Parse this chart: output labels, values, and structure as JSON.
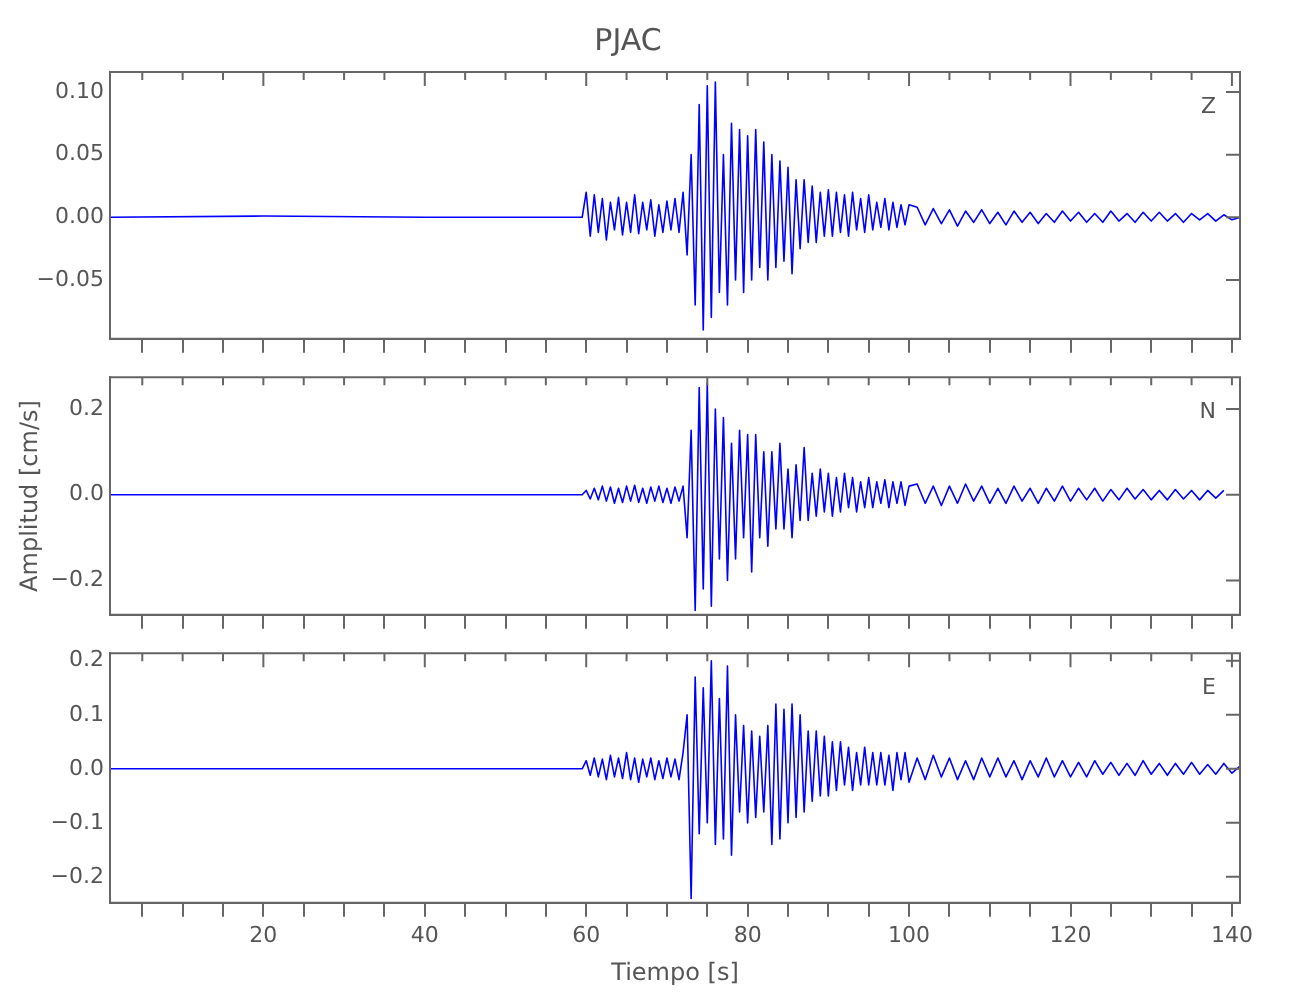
{
  "chart_data": [
    {
      "type": "line",
      "title": "PJAC",
      "annotations": [
        "Z"
      ],
      "tick_labels": "y",
      "grid": false,
      "legend": false,
      "marker": "none",
      "line_style": "solid",
      "xlim": [
        1,
        141
      ],
      "xticks": [
        {
          "value": 5,
          "label": null
        },
        {
          "value": 10,
          "label": null
        },
        {
          "value": 15,
          "label": null
        },
        20,
        {
          "value": 25,
          "label": null
        },
        {
          "value": 30,
          "label": null
        },
        {
          "value": 35,
          "label": null
        },
        40,
        {
          "value": 45,
          "label": null
        },
        {
          "value": 50,
          "label": null
        },
        {
          "value": 55,
          "label": null
        },
        60,
        {
          "value": 65,
          "label": null
        },
        {
          "value": 70,
          "label": null
        },
        {
          "value": 75,
          "label": null
        },
        80,
        {
          "value": 85,
          "label": null
        },
        {
          "value": 90,
          "label": null
        },
        {
          "value": 95,
          "label": null
        },
        100,
        {
          "value": 105,
          "label": null
        },
        {
          "value": 110,
          "label": null
        },
        {
          "value": 115,
          "label": null
        },
        120,
        {
          "value": 125,
          "label": null
        },
        {
          "value": 130,
          "label": null
        },
        {
          "value": 135,
          "label": null
        },
        140
      ],
      "ylim": [
        -0.097,
        0.116
      ],
      "yticks": [
        {
          "value": -0.05,
          "label": "−0.05"
        },
        {
          "value": 0,
          "label": "0.00"
        },
        {
          "value": 0.05,
          "label": "0.05"
        },
        {
          "value": 0.1,
          "label": "0.10"
        }
      ],
      "x": [
        1,
        20,
        40,
        59.5,
        60,
        60.5,
        61,
        61.5,
        62,
        62.5,
        63,
        63.5,
        64,
        64.5,
        65,
        65.5,
        66,
        66.5,
        67,
        67.5,
        68,
        68.5,
        69,
        69.5,
        70,
        70.5,
        71,
        71.5,
        72,
        72.5,
        73,
        73.5,
        74,
        74.5,
        75,
        75.5,
        76,
        76.5,
        77,
        77.5,
        78,
        78.5,
        79,
        79.5,
        80,
        80.5,
        81,
        81.5,
        82,
        82.5,
        83,
        83.5,
        84,
        84.5,
        85,
        85.5,
        86,
        86.5,
        87,
        87.5,
        88,
        88.5,
        89,
        89.5,
        90,
        90.5,
        91,
        91.5,
        92,
        92.5,
        93,
        93.5,
        94,
        94.5,
        95,
        95.5,
        96,
        96.5,
        97,
        97.5,
        98,
        98.5,
        99,
        99.5,
        100,
        101,
        102,
        103,
        104,
        105,
        106,
        107,
        108,
        109,
        110,
        111,
        112,
        113,
        114,
        115,
        116,
        117,
        118,
        119,
        120,
        121,
        122,
        123,
        124,
        125,
        126,
        127,
        128,
        129,
        130,
        131,
        132,
        133,
        134,
        135,
        136,
        137,
        138,
        139,
        140,
        141
      ],
      "series": [
        {
          "color": "#0000ff",
          "values": [
            0,
            0.001,
            0,
            0,
            0.02,
            -0.015,
            0.018,
            -0.012,
            0.015,
            -0.018,
            0.012,
            -0.01,
            0.016,
            -0.014,
            0.012,
            -0.012,
            0.018,
            -0.013,
            0.012,
            -0.01,
            0.014,
            -0.015,
            0.01,
            -0.012,
            0.013,
            -0.01,
            0.015,
            -0.012,
            0.02,
            -0.03,
            0.05,
            -0.07,
            0.09,
            -0.09,
            0.105,
            -0.08,
            0.108,
            -0.06,
            0.05,
            -0.07,
            0.075,
            -0.05,
            0.07,
            -0.06,
            0.065,
            -0.05,
            0.07,
            -0.04,
            0.06,
            -0.05,
            0.05,
            -0.04,
            0.045,
            -0.035,
            0.04,
            -0.045,
            0.03,
            -0.025,
            0.03,
            -0.02,
            0.025,
            -0.02,
            0.02,
            -0.015,
            0.022,
            -0.015,
            0.02,
            -0.012,
            0.018,
            -0.015,
            0.02,
            -0.01,
            0.015,
            -0.012,
            0.018,
            -0.01,
            0.012,
            -0.008,
            0.015,
            -0.01,
            0.012,
            -0.008,
            0.01,
            -0.006,
            0.01,
            0.008,
            -0.006,
            0.007,
            -0.005,
            0.006,
            -0.007,
            0.005,
            -0.004,
            0.006,
            -0.005,
            0.004,
            -0.006,
            0.005,
            -0.004,
            0.004,
            -0.005,
            0.003,
            -0.004,
            0.005,
            -0.003,
            0.004,
            -0.004,
            0.003,
            -0.004,
            0.005,
            -0.003,
            0.003,
            -0.004,
            0.004,
            -0.003,
            0.004,
            -0.003,
            0.003,
            -0.004,
            0.003,
            -0.002,
            0.003,
            -0.003,
            0.002,
            -0.002,
            0
          ]
        }
      ]
    },
    {
      "type": "line",
      "ylabel": "Amplitud [cm/s]",
      "annotations": [
        "N"
      ],
      "tick_labels": "y",
      "grid": false,
      "legend": false,
      "marker": "none",
      "line_style": "solid",
      "xlim": [
        1,
        141
      ],
      "xticks": [
        {
          "value": 5,
          "label": null
        },
        {
          "value": 10,
          "label": null
        },
        {
          "value": 15,
          "label": null
        },
        {
          "value": 20,
          "label": null
        },
        {
          "value": 25,
          "label": null
        },
        {
          "value": 30,
          "label": null
        },
        {
          "value": 35,
          "label": null
        },
        {
          "value": 40,
          "label": null
        },
        {
          "value": 45,
          "label": null
        },
        {
          "value": 50,
          "label": null
        },
        {
          "value": 55,
          "label": null
        },
        {
          "value": 60,
          "label": null
        },
        {
          "value": 65,
          "label": null
        },
        {
          "value": 70,
          "label": null
        },
        {
          "value": 75,
          "label": null
        },
        {
          "value": 80,
          "label": null
        },
        {
          "value": 85,
          "label": null
        },
        {
          "value": 90,
          "label": null
        },
        {
          "value": 95,
          "label": null
        },
        {
          "value": 100,
          "label": null
        },
        {
          "value": 105,
          "label": null
        },
        {
          "value": 110,
          "label": null
        },
        {
          "value": 115,
          "label": null
        },
        {
          "value": 120,
          "label": null
        },
        {
          "value": 125,
          "label": null
        },
        {
          "value": 130,
          "label": null
        },
        {
          "value": 135,
          "label": null
        },
        {
          "value": 140,
          "label": null
        }
      ],
      "ylim": [
        -0.28,
        0.274
      ],
      "yticks": [
        {
          "value": -0.2,
          "label": "−0.2"
        },
        {
          "value": 0,
          "label": "0.0"
        },
        {
          "value": 0.2,
          "label": "0.2"
        }
      ],
      "x": [
        1,
        20,
        40,
        59.5,
        60,
        60.5,
        61,
        61.5,
        62,
        62.5,
        63,
        63.5,
        64,
        64.5,
        65,
        65.5,
        66,
        66.5,
        67,
        67.5,
        68,
        68.5,
        69,
        69.5,
        70,
        70.5,
        71,
        71.5,
        72,
        72.5,
        73,
        73.5,
        74,
        74.5,
        75,
        75.5,
        76,
        76.5,
        77,
        77.5,
        78,
        78.5,
        79,
        79.5,
        80,
        80.5,
        81,
        81.5,
        82,
        82.5,
        83,
        83.5,
        84,
        84.5,
        85,
        85.5,
        86,
        86.5,
        87,
        87.5,
        88,
        88.5,
        89,
        89.5,
        90,
        90.5,
        91,
        91.5,
        92,
        92.5,
        93,
        93.5,
        94,
        94.5,
        95,
        95.5,
        96,
        96.5,
        97,
        97.5,
        98,
        98.5,
        99,
        99.5,
        100,
        101,
        102,
        103,
        104,
        105,
        106,
        107,
        108,
        109,
        110,
        111,
        112,
        113,
        114,
        115,
        116,
        117,
        118,
        119,
        120,
        121,
        122,
        123,
        124,
        125,
        126,
        127,
        128,
        129,
        130,
        131,
        132,
        133,
        134,
        135,
        136,
        137,
        138,
        139
      ],
      "series": [
        {
          "color": "#0000ff",
          "values": [
            0,
            0,
            0,
            0,
            0.01,
            -0.01,
            0.015,
            -0.012,
            0.02,
            -0.015,
            0.018,
            -0.02,
            0.015,
            -0.018,
            0.02,
            -0.015,
            0.022,
            -0.018,
            0.015,
            -0.02,
            0.018,
            -0.015,
            0.02,
            -0.018,
            0.015,
            -0.02,
            0.018,
            -0.015,
            0.02,
            -0.1,
            0.15,
            -0.27,
            0.25,
            -0.22,
            0.26,
            -0.26,
            0.2,
            -0.15,
            0.18,
            -0.2,
            0.12,
            -0.15,
            0.15,
            -0.1,
            0.14,
            -0.18,
            0.14,
            -0.1,
            0.1,
            -0.12,
            0.1,
            -0.08,
            0.12,
            -0.08,
            0.06,
            -0.1,
            0.07,
            -0.06,
            0.11,
            -0.06,
            0.05,
            -0.05,
            0.06,
            -0.04,
            0.05,
            -0.05,
            0.04,
            -0.04,
            0.05,
            -0.03,
            0.04,
            -0.04,
            0.03,
            -0.03,
            0.04,
            -0.03,
            0.03,
            -0.02,
            0.035,
            -0.03,
            0.03,
            -0.02,
            0.03,
            -0.025,
            0.02,
            0.025,
            -0.02,
            0.02,
            -0.025,
            0.02,
            -0.02,
            0.025,
            -0.015,
            0.02,
            -0.02,
            0.015,
            -0.02,
            0.02,
            -0.015,
            0.015,
            -0.02,
            0.015,
            -0.015,
            0.02,
            -0.015,
            0.015,
            -0.012,
            0.015,
            -0.015,
            0.012,
            -0.012,
            0.015,
            -0.01,
            0.012,
            -0.012,
            0.01,
            -0.012,
            0.012,
            -0.01,
            0.01,
            -0.012,
            0.01,
            -0.008,
            0.01
          ]
        }
      ]
    },
    {
      "type": "line",
      "xlabel": "Tiempo [s]",
      "annotations": [
        "E"
      ],
      "grid": false,
      "legend": false,
      "marker": "none",
      "line_style": "solid",
      "xlim": [
        1,
        141
      ],
      "xticks": [
        {
          "value": 5,
          "label": null
        },
        {
          "value": 10,
          "label": null
        },
        {
          "value": 15,
          "label": null
        },
        20,
        {
          "value": 25,
          "label": null
        },
        {
          "value": 30,
          "label": null
        },
        {
          "value": 35,
          "label": null
        },
        40,
        {
          "value": 45,
          "label": null
        },
        {
          "value": 50,
          "label": null
        },
        {
          "value": 55,
          "label": null
        },
        60,
        {
          "value": 65,
          "label": null
        },
        {
          "value": 70,
          "label": null
        },
        {
          "value": 75,
          "label": null
        },
        80,
        {
          "value": 85,
          "label": null
        },
        {
          "value": 90,
          "label": null
        },
        {
          "value": 95,
          "label": null
        },
        100,
        {
          "value": 105,
          "label": null
        },
        {
          "value": 110,
          "label": null
        },
        {
          "value": 115,
          "label": null
        },
        120,
        {
          "value": 125,
          "label": null
        },
        {
          "value": 130,
          "label": null
        },
        {
          "value": 135,
          "label": null
        },
        140
      ],
      "ylim": [
        -0.248,
        0.214
      ],
      "yticks": [
        {
          "value": -0.2,
          "label": "−0.2"
        },
        {
          "value": -0.1,
          "label": "−0.1"
        },
        {
          "value": 0,
          "label": "0.0"
        },
        {
          "value": 0.1,
          "label": "0.1"
        },
        {
          "value": 0.2,
          "label": "0.2"
        }
      ],
      "x": [
        1,
        20,
        40,
        59.5,
        60,
        60.5,
        61,
        61.5,
        62,
        62.5,
        63,
        63.5,
        64,
        64.5,
        65,
        65.5,
        66,
        66.5,
        67,
        67.5,
        68,
        68.5,
        69,
        69.5,
        70,
        70.5,
        71,
        71.5,
        72,
        72.5,
        73,
        73.5,
        74,
        74.5,
        75,
        75.5,
        76,
        76.5,
        77,
        77.5,
        78,
        78.5,
        79,
        79.5,
        80,
        80.5,
        81,
        81.5,
        82,
        82.5,
        83,
        83.5,
        84,
        84.5,
        85,
        85.5,
        86,
        86.5,
        87,
        87.5,
        88,
        88.5,
        89,
        89.5,
        90,
        90.5,
        91,
        91.5,
        92,
        92.5,
        93,
        93.5,
        94,
        94.5,
        95,
        95.5,
        96,
        96.5,
        97,
        97.5,
        98,
        98.5,
        99,
        99.5,
        100,
        101,
        102,
        103,
        104,
        105,
        106,
        107,
        108,
        109,
        110,
        111,
        112,
        113,
        114,
        115,
        116,
        117,
        118,
        119,
        120,
        121,
        122,
        123,
        124,
        125,
        126,
        127,
        128,
        129,
        130,
        131,
        132,
        133,
        134,
        135,
        136,
        137,
        138,
        139,
        140,
        141
      ],
      "series": [
        {
          "color": "#0000ff",
          "values": [
            0,
            0,
            0,
            0,
            0.015,
            -0.012,
            0.02,
            -0.015,
            0.018,
            -0.02,
            0.025,
            -0.015,
            0.02,
            -0.018,
            0.03,
            -0.02,
            0.02,
            -0.025,
            0.018,
            -0.015,
            0.02,
            -0.02,
            0.015,
            -0.018,
            0.02,
            -0.015,
            0.018,
            -0.02,
            0.03,
            0.1,
            -0.24,
            0.17,
            -0.12,
            0.15,
            -0.1,
            0.2,
            -0.14,
            0.13,
            -0.13,
            0.19,
            -0.16,
            0.1,
            -0.08,
            0.08,
            -0.1,
            0.07,
            -0.09,
            0.06,
            -0.08,
            0.08,
            -0.14,
            0.12,
            -0.13,
            0.11,
            -0.1,
            0.12,
            -0.09,
            0.1,
            -0.08,
            0.07,
            -0.06,
            0.07,
            -0.05,
            0.06,
            -0.05,
            0.05,
            -0.04,
            0.05,
            -0.03,
            0.04,
            -0.04,
            0.03,
            -0.03,
            0.04,
            -0.03,
            0.03,
            -0.03,
            0.03,
            -0.03,
            0.025,
            -0.04,
            0.03,
            -0.02,
            0.03,
            -0.025,
            0.02,
            -0.02,
            0.025,
            -0.015,
            0.02,
            -0.02,
            0.015,
            -0.02,
            0.02,
            -0.015,
            0.02,
            -0.015,
            0.015,
            -0.02,
            0.015,
            -0.015,
            0.02,
            -0.015,
            0.015,
            -0.015,
            0.012,
            -0.015,
            0.015,
            -0.01,
            0.012,
            -0.012,
            0.01,
            -0.012,
            0.015,
            -0.01,
            0.01,
            -0.012,
            0.01,
            -0.01,
            0.012,
            -0.01,
            0.008,
            -0.01,
            0.01,
            -0.008,
            0.005
          ]
        }
      ]
    }
  ]
}
